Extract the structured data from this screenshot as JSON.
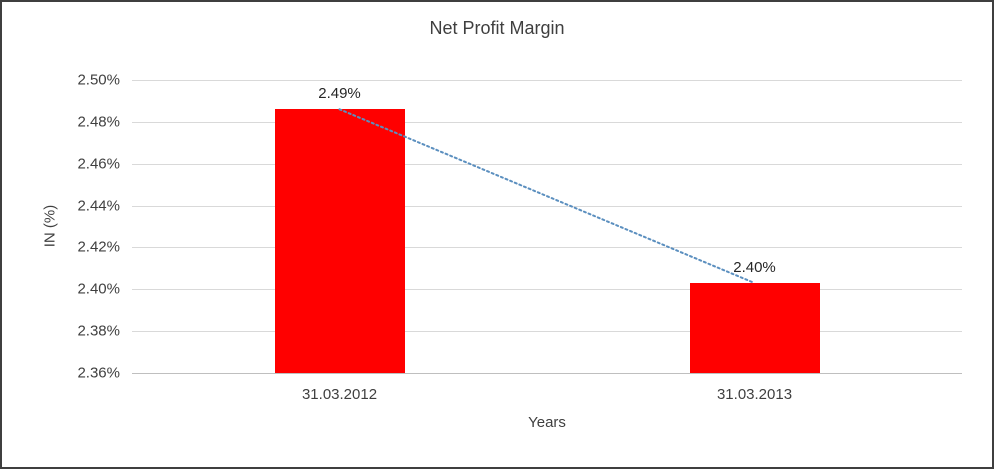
{
  "chart_data": {
    "type": "bar",
    "title": "Net Profit Margin",
    "xlabel": "Years",
    "ylabel": "IN (%)",
    "categories": [
      "31.03.2012",
      "31.03.2013"
    ],
    "values": [
      2.486,
      2.403
    ],
    "data_labels": [
      "2.49%",
      "2.40%"
    ],
    "ylim": [
      2.36,
      2.5
    ],
    "ytick_step": 0.02,
    "ytick_suffix": "%",
    "grid": true,
    "legend": "none",
    "bar_color": "#ff0000",
    "trendline": {
      "style": "dotted",
      "color": "#5b8fbf",
      "from_category": 0,
      "to_category": 1
    }
  }
}
